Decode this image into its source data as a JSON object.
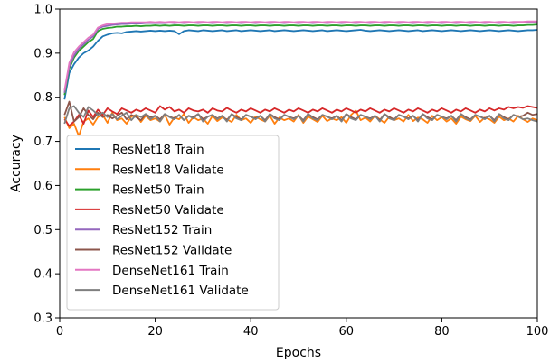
{
  "chart_data": {
    "type": "line",
    "title": "",
    "xlabel": "Epochs",
    "ylabel": "Accuracy",
    "xlim": [
      0,
      100
    ],
    "ylim": [
      0.3,
      1.0
    ],
    "xticks": [
      "0",
      "20",
      "40",
      "60",
      "80",
      "100"
    ],
    "yticks": [
      "0.3",
      "0.4",
      "0.5",
      "0.6",
      "0.7",
      "0.8",
      "0.9",
      "1.0"
    ],
    "grid": false,
    "legend_position": "lower-left",
    "x": [
      1,
      2,
      3,
      4,
      5,
      6,
      7,
      8,
      9,
      10,
      11,
      12,
      13,
      14,
      15,
      16,
      17,
      18,
      19,
      20,
      21,
      22,
      23,
      24,
      25,
      26,
      27,
      28,
      29,
      30,
      31,
      32,
      33,
      34,
      35,
      36,
      37,
      38,
      39,
      40,
      41,
      42,
      43,
      44,
      45,
      46,
      47,
      48,
      49,
      50,
      51,
      52,
      53,
      54,
      55,
      56,
      57,
      58,
      59,
      60,
      61,
      62,
      63,
      64,
      65,
      66,
      67,
      68,
      69,
      70,
      71,
      72,
      73,
      74,
      75,
      76,
      77,
      78,
      79,
      80,
      81,
      82,
      83,
      84,
      85,
      86,
      87,
      88,
      89,
      90,
      91,
      92,
      93,
      94,
      95,
      96,
      97,
      98,
      99,
      100
    ],
    "series": [
      {
        "name": "ResNet18 Train",
        "color": "#1f77b4",
        "values": [
          0.795,
          0.855,
          0.875,
          0.89,
          0.9,
          0.906,
          0.915,
          0.928,
          0.938,
          0.942,
          0.945,
          0.946,
          0.945,
          0.948,
          0.949,
          0.95,
          0.949,
          0.95,
          0.951,
          0.95,
          0.951,
          0.95,
          0.951,
          0.95,
          0.943,
          0.95,
          0.952,
          0.951,
          0.95,
          0.952,
          0.951,
          0.95,
          0.951,
          0.952,
          0.95,
          0.951,
          0.952,
          0.95,
          0.951,
          0.952,
          0.951,
          0.95,
          0.951,
          0.952,
          0.95,
          0.951,
          0.952,
          0.951,
          0.95,
          0.951,
          0.952,
          0.951,
          0.95,
          0.951,
          0.952,
          0.95,
          0.951,
          0.952,
          0.951,
          0.95,
          0.951,
          0.952,
          0.953,
          0.951,
          0.95,
          0.951,
          0.952,
          0.951,
          0.95,
          0.951,
          0.952,
          0.951,
          0.95,
          0.951,
          0.952,
          0.95,
          0.951,
          0.952,
          0.951,
          0.95,
          0.951,
          0.952,
          0.951,
          0.95,
          0.951,
          0.952,
          0.951,
          0.95,
          0.951,
          0.952,
          0.951,
          0.95,
          0.951,
          0.952,
          0.951,
          0.95,
          0.951,
          0.952,
          0.952,
          0.953
        ]
      },
      {
        "name": "ResNet18 Validate",
        "color": "#ff7f0e",
        "values": [
          0.755,
          0.73,
          0.74,
          0.712,
          0.745,
          0.752,
          0.738,
          0.755,
          0.76,
          0.742,
          0.765,
          0.748,
          0.752,
          0.74,
          0.756,
          0.76,
          0.744,
          0.758,
          0.748,
          0.752,
          0.745,
          0.76,
          0.738,
          0.754,
          0.75,
          0.762,
          0.742,
          0.755,
          0.748,
          0.752,
          0.74,
          0.758,
          0.746,
          0.754,
          0.75,
          0.744,
          0.76,
          0.748,
          0.752,
          0.742,
          0.756,
          0.75,
          0.745,
          0.758,
          0.74,
          0.754,
          0.748,
          0.752,
          0.745,
          0.76,
          0.742,
          0.756,
          0.75,
          0.744,
          0.758,
          0.746,
          0.752,
          0.748,
          0.755,
          0.742,
          0.76,
          0.77,
          0.748,
          0.754,
          0.745,
          0.758,
          0.75,
          0.742,
          0.756,
          0.748,
          0.752,
          0.745,
          0.76,
          0.746,
          0.754,
          0.75,
          0.742,
          0.758,
          0.748,
          0.755,
          0.745,
          0.752,
          0.74,
          0.756,
          0.75,
          0.746,
          0.758,
          0.744,
          0.754,
          0.75,
          0.742,
          0.756,
          0.748,
          0.752,
          0.745,
          0.758,
          0.75,
          0.744,
          0.752,
          0.748
        ]
      },
      {
        "name": "ResNet50 Train",
        "color": "#2ca02c",
        "values": [
          0.805,
          0.865,
          0.89,
          0.905,
          0.915,
          0.925,
          0.932,
          0.95,
          0.955,
          0.957,
          0.958,
          0.96,
          0.96,
          0.961,
          0.961,
          0.962,
          0.961,
          0.962,
          0.962,
          0.963,
          0.962,
          0.963,
          0.962,
          0.963,
          0.963,
          0.962,
          0.963,
          0.963,
          0.962,
          0.963,
          0.963,
          0.962,
          0.963,
          0.963,
          0.962,
          0.963,
          0.963,
          0.962,
          0.963,
          0.963,
          0.962,
          0.963,
          0.963,
          0.962,
          0.963,
          0.963,
          0.962,
          0.963,
          0.963,
          0.962,
          0.963,
          0.963,
          0.962,
          0.963,
          0.963,
          0.962,
          0.963,
          0.963,
          0.962,
          0.963,
          0.963,
          0.962,
          0.963,
          0.963,
          0.962,
          0.963,
          0.963,
          0.962,
          0.963,
          0.963,
          0.962,
          0.963,
          0.963,
          0.962,
          0.963,
          0.963,
          0.962,
          0.963,
          0.963,
          0.962,
          0.963,
          0.963,
          0.962,
          0.963,
          0.963,
          0.962,
          0.963,
          0.963,
          0.962,
          0.963,
          0.963,
          0.962,
          0.963,
          0.963,
          0.962,
          0.963,
          0.963,
          0.964,
          0.964,
          0.965
        ]
      },
      {
        "name": "ResNet50 Validate",
        "color": "#d62728",
        "values": [
          0.75,
          0.735,
          0.745,
          0.76,
          0.74,
          0.77,
          0.755,
          0.772,
          0.76,
          0.775,
          0.768,
          0.762,
          0.775,
          0.77,
          0.765,
          0.772,
          0.768,
          0.775,
          0.77,
          0.765,
          0.78,
          0.772,
          0.778,
          0.768,
          0.772,
          0.765,
          0.775,
          0.77,
          0.768,
          0.772,
          0.765,
          0.775,
          0.77,
          0.768,
          0.776,
          0.77,
          0.765,
          0.772,
          0.768,
          0.775,
          0.77,
          0.765,
          0.772,
          0.768,
          0.775,
          0.77,
          0.765,
          0.772,
          0.768,
          0.775,
          0.77,
          0.765,
          0.772,
          0.768,
          0.775,
          0.77,
          0.765,
          0.772,
          0.768,
          0.775,
          0.77,
          0.765,
          0.772,
          0.768,
          0.775,
          0.77,
          0.765,
          0.772,
          0.768,
          0.775,
          0.77,
          0.765,
          0.772,
          0.768,
          0.775,
          0.77,
          0.765,
          0.772,
          0.768,
          0.775,
          0.77,
          0.765,
          0.772,
          0.768,
          0.775,
          0.77,
          0.765,
          0.772,
          0.768,
          0.775,
          0.77,
          0.775,
          0.772,
          0.778,
          0.775,
          0.778,
          0.776,
          0.78,
          0.778,
          0.776
        ]
      },
      {
        "name": "ResNet152 Train",
        "color": "#9467bd",
        "values": [
          0.81,
          0.87,
          0.895,
          0.91,
          0.92,
          0.93,
          0.938,
          0.955,
          0.96,
          0.962,
          0.964,
          0.965,
          0.966,
          0.966,
          0.967,
          0.967,
          0.967,
          0.968,
          0.968,
          0.968,
          0.968,
          0.968,
          0.969,
          0.968,
          0.969,
          0.968,
          0.969,
          0.969,
          0.968,
          0.969,
          0.969,
          0.968,
          0.969,
          0.969,
          0.968,
          0.969,
          0.969,
          0.968,
          0.969,
          0.969,
          0.968,
          0.969,
          0.969,
          0.968,
          0.969,
          0.969,
          0.968,
          0.969,
          0.969,
          0.968,
          0.969,
          0.969,
          0.968,
          0.969,
          0.969,
          0.968,
          0.969,
          0.969,
          0.968,
          0.969,
          0.969,
          0.968,
          0.969,
          0.969,
          0.968,
          0.969,
          0.969,
          0.968,
          0.969,
          0.969,
          0.968,
          0.969,
          0.969,
          0.968,
          0.969,
          0.969,
          0.968,
          0.969,
          0.969,
          0.968,
          0.969,
          0.969,
          0.968,
          0.969,
          0.969,
          0.968,
          0.969,
          0.969,
          0.968,
          0.969,
          0.969,
          0.968,
          0.969,
          0.969,
          0.968,
          0.969,
          0.969,
          0.969,
          0.97,
          0.97
        ]
      },
      {
        "name": "ResNet152 Validate",
        "color": "#8c564b",
        "values": [
          0.76,
          0.79,
          0.745,
          0.755,
          0.775,
          0.76,
          0.75,
          0.765,
          0.755,
          0.76,
          0.752,
          0.758,
          0.765,
          0.75,
          0.76,
          0.755,
          0.748,
          0.762,
          0.755,
          0.758,
          0.75,
          0.762,
          0.756,
          0.752,
          0.76,
          0.748,
          0.758,
          0.755,
          0.762,
          0.75,
          0.756,
          0.76,
          0.752,
          0.758,
          0.748,
          0.762,
          0.755,
          0.75,
          0.76,
          0.756,
          0.752,
          0.758,
          0.748,
          0.762,
          0.755,
          0.75,
          0.76,
          0.756,
          0.752,
          0.758,
          0.748,
          0.762,
          0.755,
          0.75,
          0.76,
          0.756,
          0.752,
          0.758,
          0.748,
          0.762,
          0.755,
          0.75,
          0.76,
          0.756,
          0.752,
          0.758,
          0.748,
          0.762,
          0.755,
          0.75,
          0.76,
          0.756,
          0.752,
          0.758,
          0.748,
          0.762,
          0.755,
          0.75,
          0.76,
          0.756,
          0.752,
          0.758,
          0.748,
          0.762,
          0.755,
          0.75,
          0.76,
          0.756,
          0.752,
          0.758,
          0.748,
          0.762,
          0.755,
          0.75,
          0.76,
          0.756,
          0.758,
          0.765,
          0.76,
          0.762
        ]
      },
      {
        "name": "DenseNet161 Train",
        "color": "#e377c2",
        "values": [
          0.815,
          0.878,
          0.902,
          0.915,
          0.925,
          0.935,
          0.942,
          0.958,
          0.963,
          0.966,
          0.967,
          0.968,
          0.969,
          0.969,
          0.97,
          0.97,
          0.97,
          0.97,
          0.971,
          0.97,
          0.971,
          0.97,
          0.971,
          0.971,
          0.97,
          0.971,
          0.971,
          0.97,
          0.971,
          0.971,
          0.97,
          0.971,
          0.971,
          0.97,
          0.971,
          0.971,
          0.97,
          0.971,
          0.971,
          0.97,
          0.971,
          0.971,
          0.97,
          0.971,
          0.971,
          0.97,
          0.971,
          0.971,
          0.97,
          0.971,
          0.971,
          0.97,
          0.971,
          0.971,
          0.97,
          0.971,
          0.971,
          0.97,
          0.971,
          0.971,
          0.97,
          0.971,
          0.971,
          0.97,
          0.971,
          0.971,
          0.97,
          0.971,
          0.971,
          0.97,
          0.971,
          0.971,
          0.97,
          0.971,
          0.971,
          0.97,
          0.971,
          0.971,
          0.97,
          0.971,
          0.971,
          0.97,
          0.971,
          0.971,
          0.97,
          0.971,
          0.971,
          0.97,
          0.971,
          0.971,
          0.97,
          0.971,
          0.971,
          0.97,
          0.971,
          0.971,
          0.971,
          0.972,
          0.972,
          0.972
        ]
      },
      {
        "name": "DenseNet161 Validate",
        "color": "#7f7f7f",
        "values": [
          0.74,
          0.775,
          0.78,
          0.765,
          0.755,
          0.778,
          0.77,
          0.76,
          0.765,
          0.755,
          0.762,
          0.75,
          0.758,
          0.765,
          0.748,
          0.76,
          0.755,
          0.762,
          0.75,
          0.758,
          0.745,
          0.762,
          0.755,
          0.75,
          0.76,
          0.748,
          0.758,
          0.752,
          0.762,
          0.745,
          0.756,
          0.76,
          0.75,
          0.758,
          0.745,
          0.762,
          0.752,
          0.748,
          0.76,
          0.756,
          0.75,
          0.758,
          0.745,
          0.762,
          0.752,
          0.748,
          0.76,
          0.756,
          0.75,
          0.758,
          0.745,
          0.762,
          0.752,
          0.748,
          0.76,
          0.756,
          0.75,
          0.758,
          0.745,
          0.762,
          0.752,
          0.748,
          0.76,
          0.756,
          0.75,
          0.758,
          0.745,
          0.762,
          0.752,
          0.748,
          0.76,
          0.756,
          0.75,
          0.758,
          0.745,
          0.762,
          0.752,
          0.748,
          0.76,
          0.756,
          0.75,
          0.758,
          0.745,
          0.762,
          0.752,
          0.748,
          0.76,
          0.756,
          0.75,
          0.758,
          0.745,
          0.762,
          0.752,
          0.748,
          0.76,
          0.756,
          0.75,
          0.752,
          0.748,
          0.745
        ]
      }
    ]
  }
}
